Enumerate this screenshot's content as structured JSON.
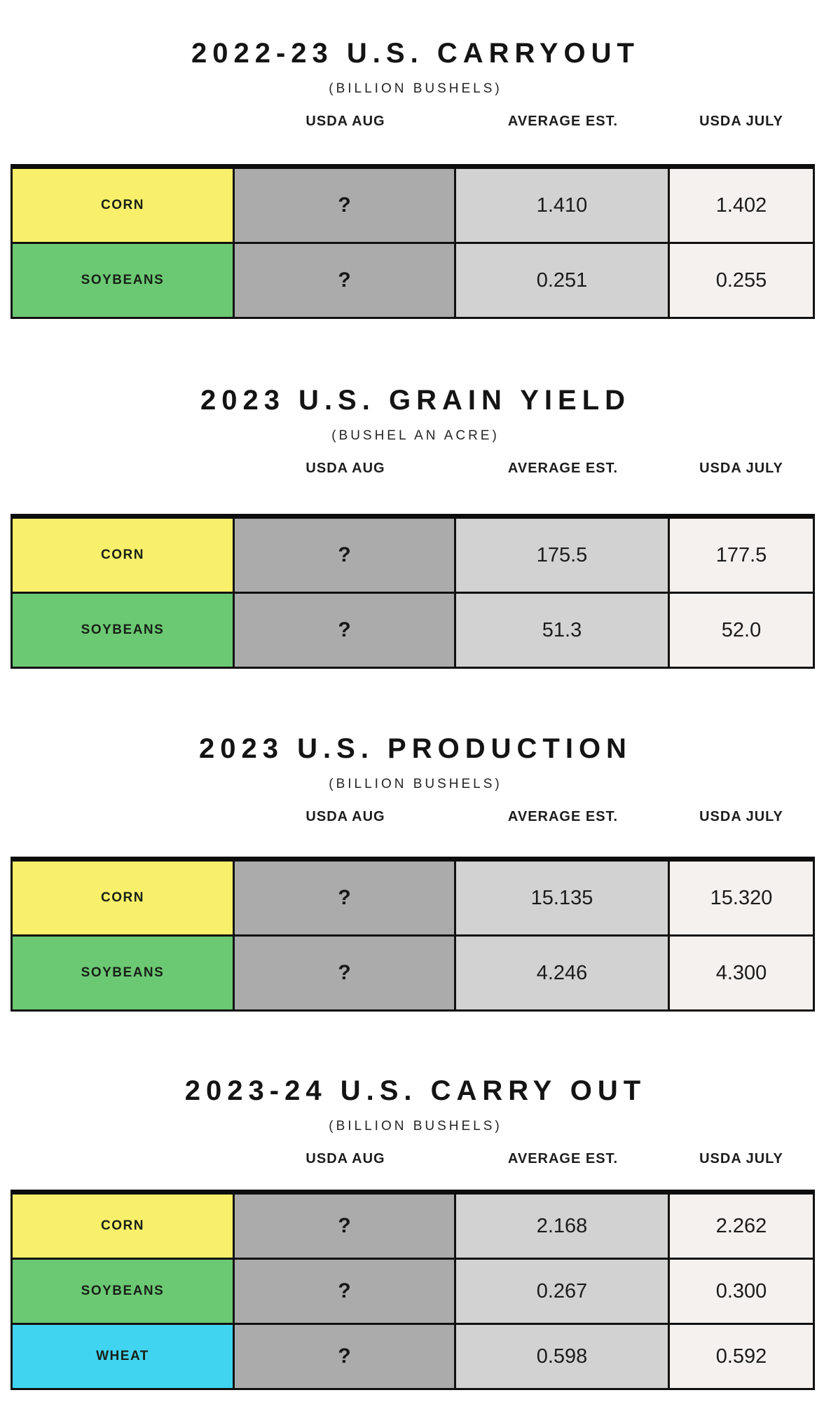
{
  "styles": {
    "page_background": "#ffffff",
    "border_color": "#111111",
    "column_colors": {
      "usda_aug": "#ababab",
      "average_est": "#d2d2d2",
      "usda_july": "#f4f1ee"
    }
  },
  "chart_data": [
    {
      "type": "table",
      "title": "2022-23 U.S. CARRYOUT",
      "subtitle": "(BILLION BUSHELS)",
      "columns": [
        "USDA AUG",
        "AVERAGE EST.",
        "USDA JULY"
      ],
      "rows": [
        {
          "label": "CORN",
          "row_color": "#f8f06a",
          "usda_aug": "?",
          "average_est": "1.410",
          "usda_july": "1.402"
        },
        {
          "label": "SOYBEANS",
          "row_color": "#6cc973",
          "usda_aug": "?",
          "average_est": "0.251",
          "usda_july": "0.255"
        }
      ]
    },
    {
      "type": "table",
      "title": "2023 U.S. GRAIN YIELD",
      "subtitle": "(BUSHEL AN ACRE)",
      "columns": [
        "USDA AUG",
        "AVERAGE EST.",
        "USDA JULY"
      ],
      "rows": [
        {
          "label": "CORN",
          "row_color": "#f8f06a",
          "usda_aug": "?",
          "average_est": "175.5",
          "usda_july": "177.5"
        },
        {
          "label": "SOYBEANS",
          "row_color": "#6cc973",
          "usda_aug": "?",
          "average_est": "51.3",
          "usda_july": "52.0"
        }
      ]
    },
    {
      "type": "table",
      "title": "2023 U.S. PRODUCTION",
      "subtitle": "(BILLION BUSHELS)",
      "columns": [
        "USDA AUG",
        "AVERAGE EST.",
        "USDA JULY"
      ],
      "rows": [
        {
          "label": "CORN",
          "row_color": "#f8f06a",
          "usda_aug": "?",
          "average_est": "15.135",
          "usda_july": "15.320"
        },
        {
          "label": "SOYBEANS",
          "row_color": "#6cc973",
          "usda_aug": "?",
          "average_est": "4.246",
          "usda_july": "4.300"
        }
      ]
    },
    {
      "type": "table",
      "title": "2023-24 U.S. CARRY OUT",
      "subtitle": "(BILLION BUSHELS)",
      "columns": [
        "USDA AUG",
        "AVERAGE EST.",
        "USDA JULY"
      ],
      "rows": [
        {
          "label": "CORN",
          "row_color": "#f8f06a",
          "usda_aug": "?",
          "average_est": "2.168",
          "usda_july": "2.262"
        },
        {
          "label": "SOYBEANS",
          "row_color": "#6cc973",
          "usda_aug": "?",
          "average_est": "0.267",
          "usda_july": "0.300"
        },
        {
          "label": "WHEAT",
          "row_color": "#41d4f0",
          "usda_aug": "?",
          "average_est": "0.598",
          "usda_july": "0.592"
        }
      ]
    }
  ]
}
